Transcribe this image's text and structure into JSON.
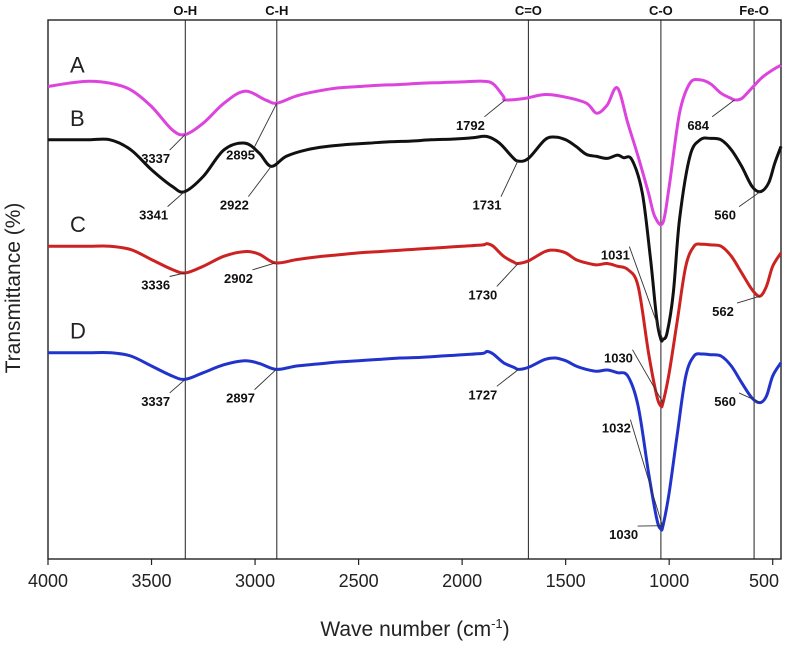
{
  "chart_data": {
    "type": "line",
    "xlabel": "Wave number (cm",
    "xlabel_sup": "-1",
    "xlabel_close": ")",
    "ylabel": "Transmittance (%)",
    "xlim": [
      4000,
      460
    ],
    "x_reversed": true,
    "x_ticks": [
      4000,
      3500,
      3000,
      2500,
      2000,
      1500,
      1000,
      500
    ],
    "y_ticks": [],
    "grid": false,
    "legend": "none",
    "reference_lines": [
      {
        "x": 3337,
        "label": "O-H"
      },
      {
        "x": 2895,
        "label": "C-H"
      },
      {
        "x": 1680,
        "label": "C=O"
      },
      {
        "x": 1040,
        "label": "C-O"
      },
      {
        "x": 590,
        "label": "Fe-O"
      }
    ],
    "series": [
      {
        "name": "A",
        "color": "#dd44dd",
        "x": [
          4000,
          3900,
          3800,
          3700,
          3600,
          3500,
          3400,
          3337,
          3250,
          3150,
          3050,
          2950,
          2895,
          2800,
          2700,
          2600,
          2500,
          2400,
          2300,
          2200,
          2100,
          2000,
          1900,
          1850,
          1800,
          1792,
          1700,
          1600,
          1500,
          1400,
          1350,
          1300,
          1250,
          1200,
          1150,
          1100,
          1070,
          1031,
          1000,
          950,
          900,
          850,
          800,
          750,
          700,
          684,
          650,
          600,
          550,
          500,
          460
        ],
        "y": [
          0.68,
          0.685,
          0.688,
          0.685,
          0.675,
          0.65,
          0.615,
          0.608,
          0.625,
          0.655,
          0.673,
          0.66,
          0.655,
          0.666,
          0.673,
          0.678,
          0.68,
          0.682,
          0.683,
          0.685,
          0.686,
          0.687,
          0.688,
          0.684,
          0.665,
          0.66,
          0.662,
          0.668,
          0.664,
          0.655,
          0.64,
          0.652,
          0.678,
          0.625,
          0.575,
          0.52,
          0.485,
          0.475,
          0.53,
          0.64,
          0.685,
          0.69,
          0.684,
          0.67,
          0.662,
          0.66,
          0.662,
          0.678,
          0.694,
          0.705,
          0.712
        ]
      },
      {
        "name": "B",
        "color": "#111111",
        "x": [
          4000,
          3900,
          3800,
          3700,
          3600,
          3500,
          3400,
          3341,
          3250,
          3150,
          3050,
          2980,
          2922,
          2850,
          2750,
          2650,
          2550,
          2450,
          2350,
          2250,
          2150,
          2050,
          1950,
          1880,
          1820,
          1760,
          1731,
          1680,
          1600,
          1550,
          1500,
          1450,
          1400,
          1350,
          1300,
          1250,
          1220,
          1180,
          1130,
          1090,
          1060,
          1040,
          1030,
          1010,
          980,
          950,
          900,
          850,
          800,
          750,
          700,
          650,
          600,
          560,
          520,
          490,
          460
        ],
        "y": [
          0.6,
          0.6,
          0.6,
          0.6,
          0.585,
          0.555,
          0.53,
          0.522,
          0.545,
          0.585,
          0.595,
          0.58,
          0.56,
          0.575,
          0.585,
          0.59,
          0.593,
          0.595,
          0.597,
          0.598,
          0.6,
          0.601,
          0.603,
          0.605,
          0.595,
          0.575,
          0.568,
          0.572,
          0.6,
          0.604,
          0.6,
          0.59,
          0.578,
          0.575,
          0.572,
          0.577,
          0.573,
          0.57,
          0.52,
          0.42,
          0.33,
          0.3,
          0.3,
          0.31,
          0.37,
          0.48,
          0.575,
          0.6,
          0.602,
          0.6,
          0.585,
          0.56,
          0.53,
          0.522,
          0.535,
          0.565,
          0.59
        ]
      },
      {
        "name": "C",
        "color": "#cc2222",
        "x": [
          4000,
          3900,
          3800,
          3700,
          3600,
          3500,
          3400,
          3336,
          3250,
          3150,
          3050,
          2980,
          2902,
          2800,
          2700,
          2600,
          2500,
          2400,
          2300,
          2200,
          2100,
          2000,
          1900,
          1880,
          1850,
          1800,
          1750,
          1730,
          1680,
          1600,
          1550,
          1500,
          1450,
          1400,
          1350,
          1300,
          1250,
          1200,
          1150,
          1100,
          1060,
          1040,
          1030,
          1000,
          960,
          920,
          880,
          840,
          800,
          750,
          700,
          650,
          600,
          562,
          530,
          500,
          460
        ],
        "y": [
          0.44,
          0.44,
          0.44,
          0.44,
          0.435,
          0.42,
          0.405,
          0.4,
          0.41,
          0.425,
          0.432,
          0.428,
          0.415,
          0.42,
          0.424,
          0.427,
          0.43,
          0.432,
          0.434,
          0.436,
          0.438,
          0.44,
          0.442,
          0.444,
          0.44,
          0.425,
          0.416,
          0.414,
          0.418,
          0.432,
          0.434,
          0.43,
          0.42,
          0.415,
          0.412,
          0.414,
          0.41,
          0.405,
          0.38,
          0.28,
          0.215,
          0.2,
          0.205,
          0.25,
          0.33,
          0.41,
          0.44,
          0.443,
          0.442,
          0.44,
          0.425,
          0.4,
          0.375,
          0.365,
          0.38,
          0.41,
          0.43
        ]
      },
      {
        "name": "D",
        "color": "#2233cc",
        "x": [
          4000,
          3900,
          3800,
          3700,
          3600,
          3500,
          3400,
          3337,
          3250,
          3150,
          3050,
          2980,
          2897,
          2800,
          2700,
          2600,
          2500,
          2400,
          2300,
          2200,
          2100,
          2000,
          1900,
          1880,
          1850,
          1800,
          1750,
          1727,
          1680,
          1600,
          1550,
          1500,
          1450,
          1400,
          1350,
          1300,
          1250,
          1200,
          1150,
          1100,
          1060,
          1040,
          1030,
          1000,
          960,
          920,
          880,
          840,
          800,
          750,
          700,
          650,
          600,
          560,
          530,
          500,
          460
        ],
        "y": [
          0.28,
          0.28,
          0.28,
          0.28,
          0.275,
          0.26,
          0.245,
          0.24,
          0.25,
          0.262,
          0.268,
          0.264,
          0.255,
          0.26,
          0.263,
          0.266,
          0.268,
          0.27,
          0.272,
          0.273,
          0.275,
          0.277,
          0.279,
          0.282,
          0.278,
          0.265,
          0.258,
          0.255,
          0.258,
          0.27,
          0.272,
          0.268,
          0.26,
          0.255,
          0.252,
          0.254,
          0.25,
          0.245,
          0.2,
          0.1,
          0.03,
          0.015,
          0.02,
          0.07,
          0.16,
          0.245,
          0.275,
          0.278,
          0.277,
          0.275,
          0.26,
          0.235,
          0.212,
          0.205,
          0.215,
          0.245,
          0.265
        ]
      }
    ],
    "annotations": [
      {
        "series": "A",
        "x": 3337,
        "label": "3337",
        "label_x": 3480,
        "label_y": 0.565
      },
      {
        "series": "A",
        "x": 2895,
        "label": "2895",
        "label_x": 3070,
        "label_y": 0.57
      },
      {
        "series": "A",
        "x": 1792,
        "label": "1792",
        "label_x": 1960,
        "label_y": 0.615
      },
      {
        "series": "A",
        "x": 684,
        "label": "684",
        "label_x": 860,
        "label_y": 0.615
      },
      {
        "series": "B",
        "x": 3341,
        "label": "3341",
        "label_x": 3490,
        "label_y": 0.48
      },
      {
        "series": "B",
        "x": 2922,
        "label": "2922",
        "label_x": 3100,
        "label_y": 0.495
      },
      {
        "series": "B",
        "x": 1731,
        "label": "1731",
        "label_x": 1880,
        "label_y": 0.495
      },
      {
        "series": "B",
        "x": 1031,
        "label": "1031",
        "label_x": 1260,
        "label_y": 0.42
      },
      {
        "series": "B",
        "x": 560,
        "label": "560",
        "label_x": 730,
        "label_y": 0.48
      },
      {
        "series": "C",
        "x": 3336,
        "label": "3336",
        "label_x": 3480,
        "label_y": 0.375
      },
      {
        "series": "C",
        "x": 2902,
        "label": "2902",
        "label_x": 3080,
        "label_y": 0.385
      },
      {
        "series": "C",
        "x": 1730,
        "label": "1730",
        "label_x": 1900,
        "label_y": 0.36
      },
      {
        "series": "C",
        "x": 1030,
        "label": "1030",
        "label_x": 1245,
        "label_y": 0.265
      },
      {
        "series": "C",
        "x": 562,
        "label": "562",
        "label_x": 740,
        "label_y": 0.335
      },
      {
        "series": "D",
        "x": 3337,
        "label": "3337",
        "label_x": 3480,
        "label_y": 0.2
      },
      {
        "series": "D",
        "x": 2897,
        "label": "2897",
        "label_x": 3070,
        "label_y": 0.205
      },
      {
        "series": "D",
        "x": 1727,
        "label": "1727",
        "label_x": 1900,
        "label_y": 0.21
      },
      {
        "series": "D",
        "x": 1032,
        "label": "1032",
        "label_x": 1255,
        "label_y": 0.16
      },
      {
        "series": "D",
        "x": 560,
        "label": "560",
        "label_x": 730,
        "label_y": 0.2
      },
      {
        "series": "D",
        "x": 1030,
        "label": "1030",
        "label_x": 1220,
        "label_y": 0.0
      }
    ]
  }
}
